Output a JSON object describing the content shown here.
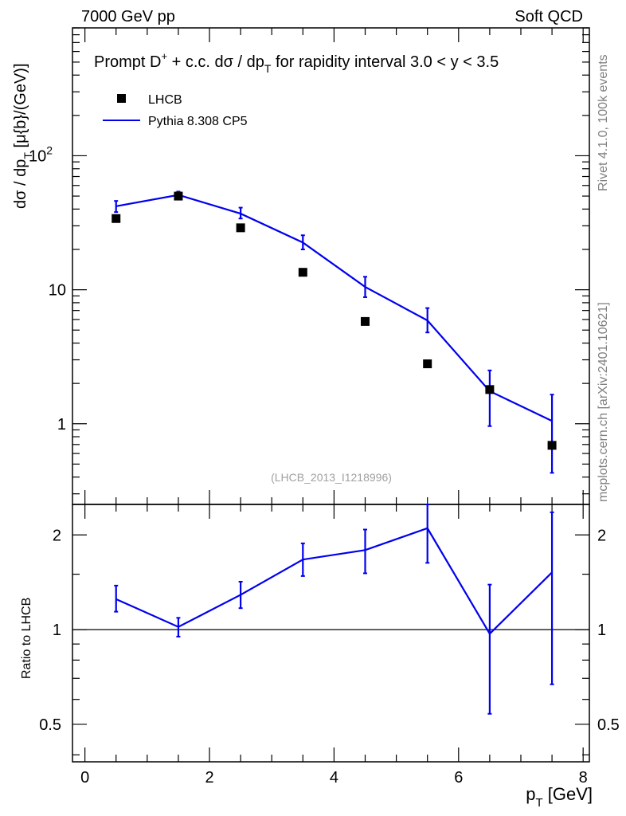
{
  "header": {
    "energy_label": "7000 GeV pp",
    "process_label": "Soft QCD"
  },
  "side_labels": {
    "generator_info": "Rivet 4.1.0,  100k events",
    "source": "mcplots.cern.ch [arXiv:2401.10621]"
  },
  "chart_data": [
    {
      "type": "line",
      "title": "Prompt D⁺ + c.c.  dσ / dpₜ for rapidity interval 3.0 < y < 3.5",
      "title_parts": {
        "a": "Prompt D",
        "sup": "+",
        "b": " + c.c.  dσ / dp",
        "sub": "T",
        "c": " for rapidity interval 3.0 < y < 3.5"
      },
      "ylabel_parts": {
        "a": "dσ / dp",
        "sub": "T",
        "b": " [μ{b}/(GeV)]"
      },
      "y_scale": "log",
      "ylim": [
        0.25,
        900
      ],
      "xlim": [
        -0.2,
        8.1
      ],
      "y_ticks": [
        {
          "value": 1,
          "label": "1"
        },
        {
          "value": 10,
          "label": "10"
        },
        {
          "value": 100,
          "label": "10",
          "sup": "2"
        }
      ],
      "legend_position": "top-left",
      "watermark": "(LHCB_2013_I1218996)",
      "x": [
        0.5,
        1.5,
        2.5,
        3.5,
        4.5,
        5.5,
        6.5,
        7.5
      ],
      "series": [
        {
          "name": "LHCB",
          "kind": "markers",
          "color": "#000000",
          "values": [
            34,
            50,
            29,
            13.5,
            5.8,
            2.8,
            1.8,
            0.69
          ]
        },
        {
          "name": "Pythia 8.308 CP5",
          "kind": "line",
          "color": "#0000ee",
          "values": [
            42,
            51,
            37,
            22.5,
            10.5,
            5.9,
            1.75,
            1.05
          ],
          "err_low": [
            38,
            48,
            34,
            20,
            8.8,
            4.8,
            0.96,
            0.43
          ],
          "err_high": [
            46,
            54,
            41,
            25.5,
            12.5,
            7.3,
            2.5,
            1.65
          ]
        }
      ]
    },
    {
      "type": "line",
      "ylabel": "Ratio to LHCB",
      "y_scale": "log",
      "ylim": [
        0.38,
        2.5
      ],
      "xlim": [
        -0.2,
        8.1
      ],
      "xlabel_parts": {
        "a": "p",
        "sub": "T",
        "b": " [GeV]"
      },
      "x_ticks": [
        0,
        2,
        4,
        6,
        8
      ],
      "y_ticks": [
        0.5,
        1,
        2
      ],
      "reference_line": 1,
      "x": [
        0.5,
        1.5,
        2.5,
        3.5,
        4.5,
        5.5,
        6.5,
        7.5
      ],
      "series": [
        {
          "name": "Pythia 8.308 CP5",
          "color": "#0000ee",
          "values": [
            1.25,
            1.02,
            1.29,
            1.67,
            1.79,
            2.1,
            0.97,
            1.52
          ],
          "err_low": [
            1.14,
            0.95,
            1.17,
            1.48,
            1.51,
            1.63,
            0.54,
            0.67
          ],
          "err_high": [
            1.38,
            1.09,
            1.42,
            1.88,
            2.08,
            2.55,
            1.39,
            2.36
          ]
        }
      ]
    }
  ]
}
